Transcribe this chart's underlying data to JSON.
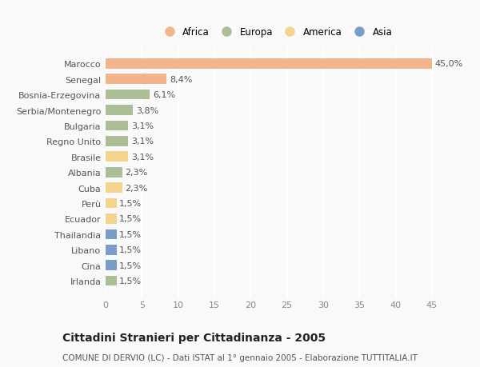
{
  "categories": [
    "Marocco",
    "Senegal",
    "Bosnia-Erzegovina",
    "Serbia/Montenegro",
    "Bulgaria",
    "Regno Unito",
    "Brasile",
    "Albania",
    "Cuba",
    "Perù",
    "Ecuador",
    "Thailandia",
    "Libano",
    "Cina",
    "Irlanda"
  ],
  "values": [
    45.0,
    8.4,
    6.1,
    3.8,
    3.1,
    3.1,
    3.1,
    2.3,
    2.3,
    1.5,
    1.5,
    1.5,
    1.5,
    1.5,
    1.5
  ],
  "labels": [
    "45,0%",
    "8,4%",
    "6,1%",
    "3,8%",
    "3,1%",
    "3,1%",
    "3,1%",
    "2,3%",
    "2,3%",
    "1,5%",
    "1,5%",
    "1,5%",
    "1,5%",
    "1,5%",
    "1,5%"
  ],
  "continents": [
    "Africa",
    "Africa",
    "Europa",
    "Europa",
    "Europa",
    "Europa",
    "America",
    "Europa",
    "America",
    "America",
    "America",
    "Asia",
    "Asia",
    "Asia",
    "Europa"
  ],
  "continent_colors": {
    "Africa": "#F2B48A",
    "Europa": "#ABBE96",
    "America": "#F2D48A",
    "Asia": "#7A9CC8"
  },
  "legend_order": [
    "Africa",
    "Europa",
    "America",
    "Asia"
  ],
  "title": "Cittadini Stranieri per Cittadinanza - 2005",
  "subtitle": "COMUNE DI DERVIO (LC) - Dati ISTAT al 1° gennaio 2005 - Elaborazione TUTTITALIA.IT",
  "xlim": [
    0,
    47
  ],
  "xticks": [
    0,
    5,
    10,
    15,
    20,
    25,
    30,
    35,
    40,
    45
  ],
  "background_color": "#f9f9f9",
  "bar_height": 0.65,
  "label_fontsize": 8,
  "tick_fontsize": 8,
  "title_fontsize": 10,
  "subtitle_fontsize": 7.5,
  "legend_fontsize": 8.5
}
